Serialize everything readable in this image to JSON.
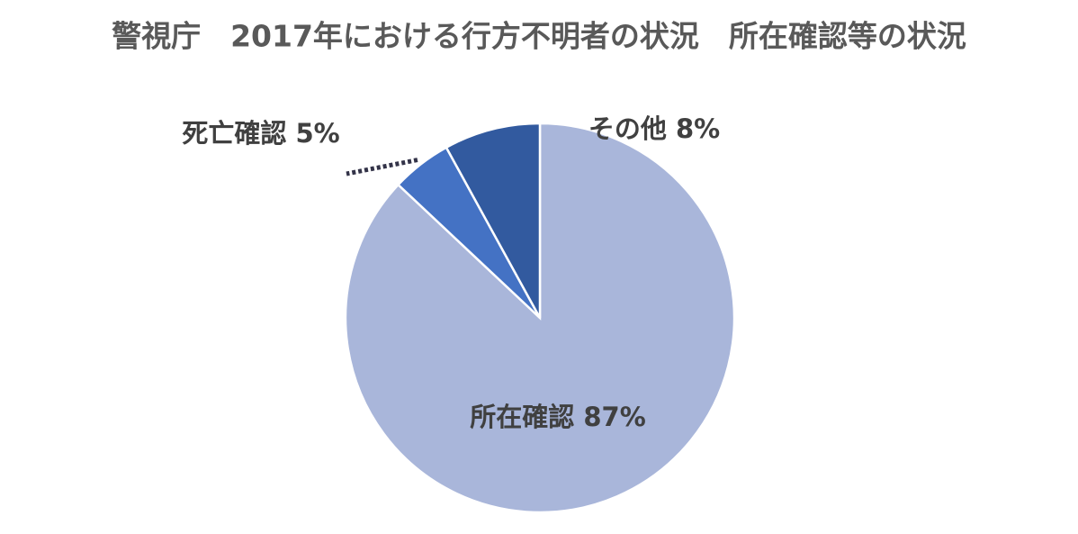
{
  "chart_data": {
    "type": "pie",
    "title": "警視庁　2017年における行方不明者の状況　所在確認等の状況",
    "categories": [
      "所在確認",
      "死亡確認",
      "その他"
    ],
    "values": [
      87,
      5,
      8
    ],
    "value_labels": [
      "87%",
      "5%",
      "8%"
    ],
    "colors": [
      "#a9b6da",
      "#4472c4",
      "#325a9f"
    ]
  }
}
